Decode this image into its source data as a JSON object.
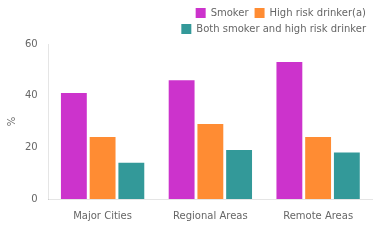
{
  "chart_data": {
    "type": "bar",
    "categories": [
      "Major Cities",
      "Regional Areas",
      "Remote Areas"
    ],
    "series": [
      {
        "name": "Smoker",
        "color": "#cc33cc",
        "values": [
          41,
          46,
          53
        ]
      },
      {
        "name": "High risk drinker(a)",
        "color": "#ff8c33",
        "values": [
          24,
          29,
          24
        ]
      },
      {
        "name": "Both smoker and high risk drinker",
        "color": "#339999",
        "values": [
          14,
          19,
          18
        ]
      }
    ],
    "ylabel": "%",
    "ylim": [
      0,
      60
    ],
    "yticks": [
      0,
      20,
      40,
      60
    ],
    "grid": false,
    "legend": "upper right"
  }
}
